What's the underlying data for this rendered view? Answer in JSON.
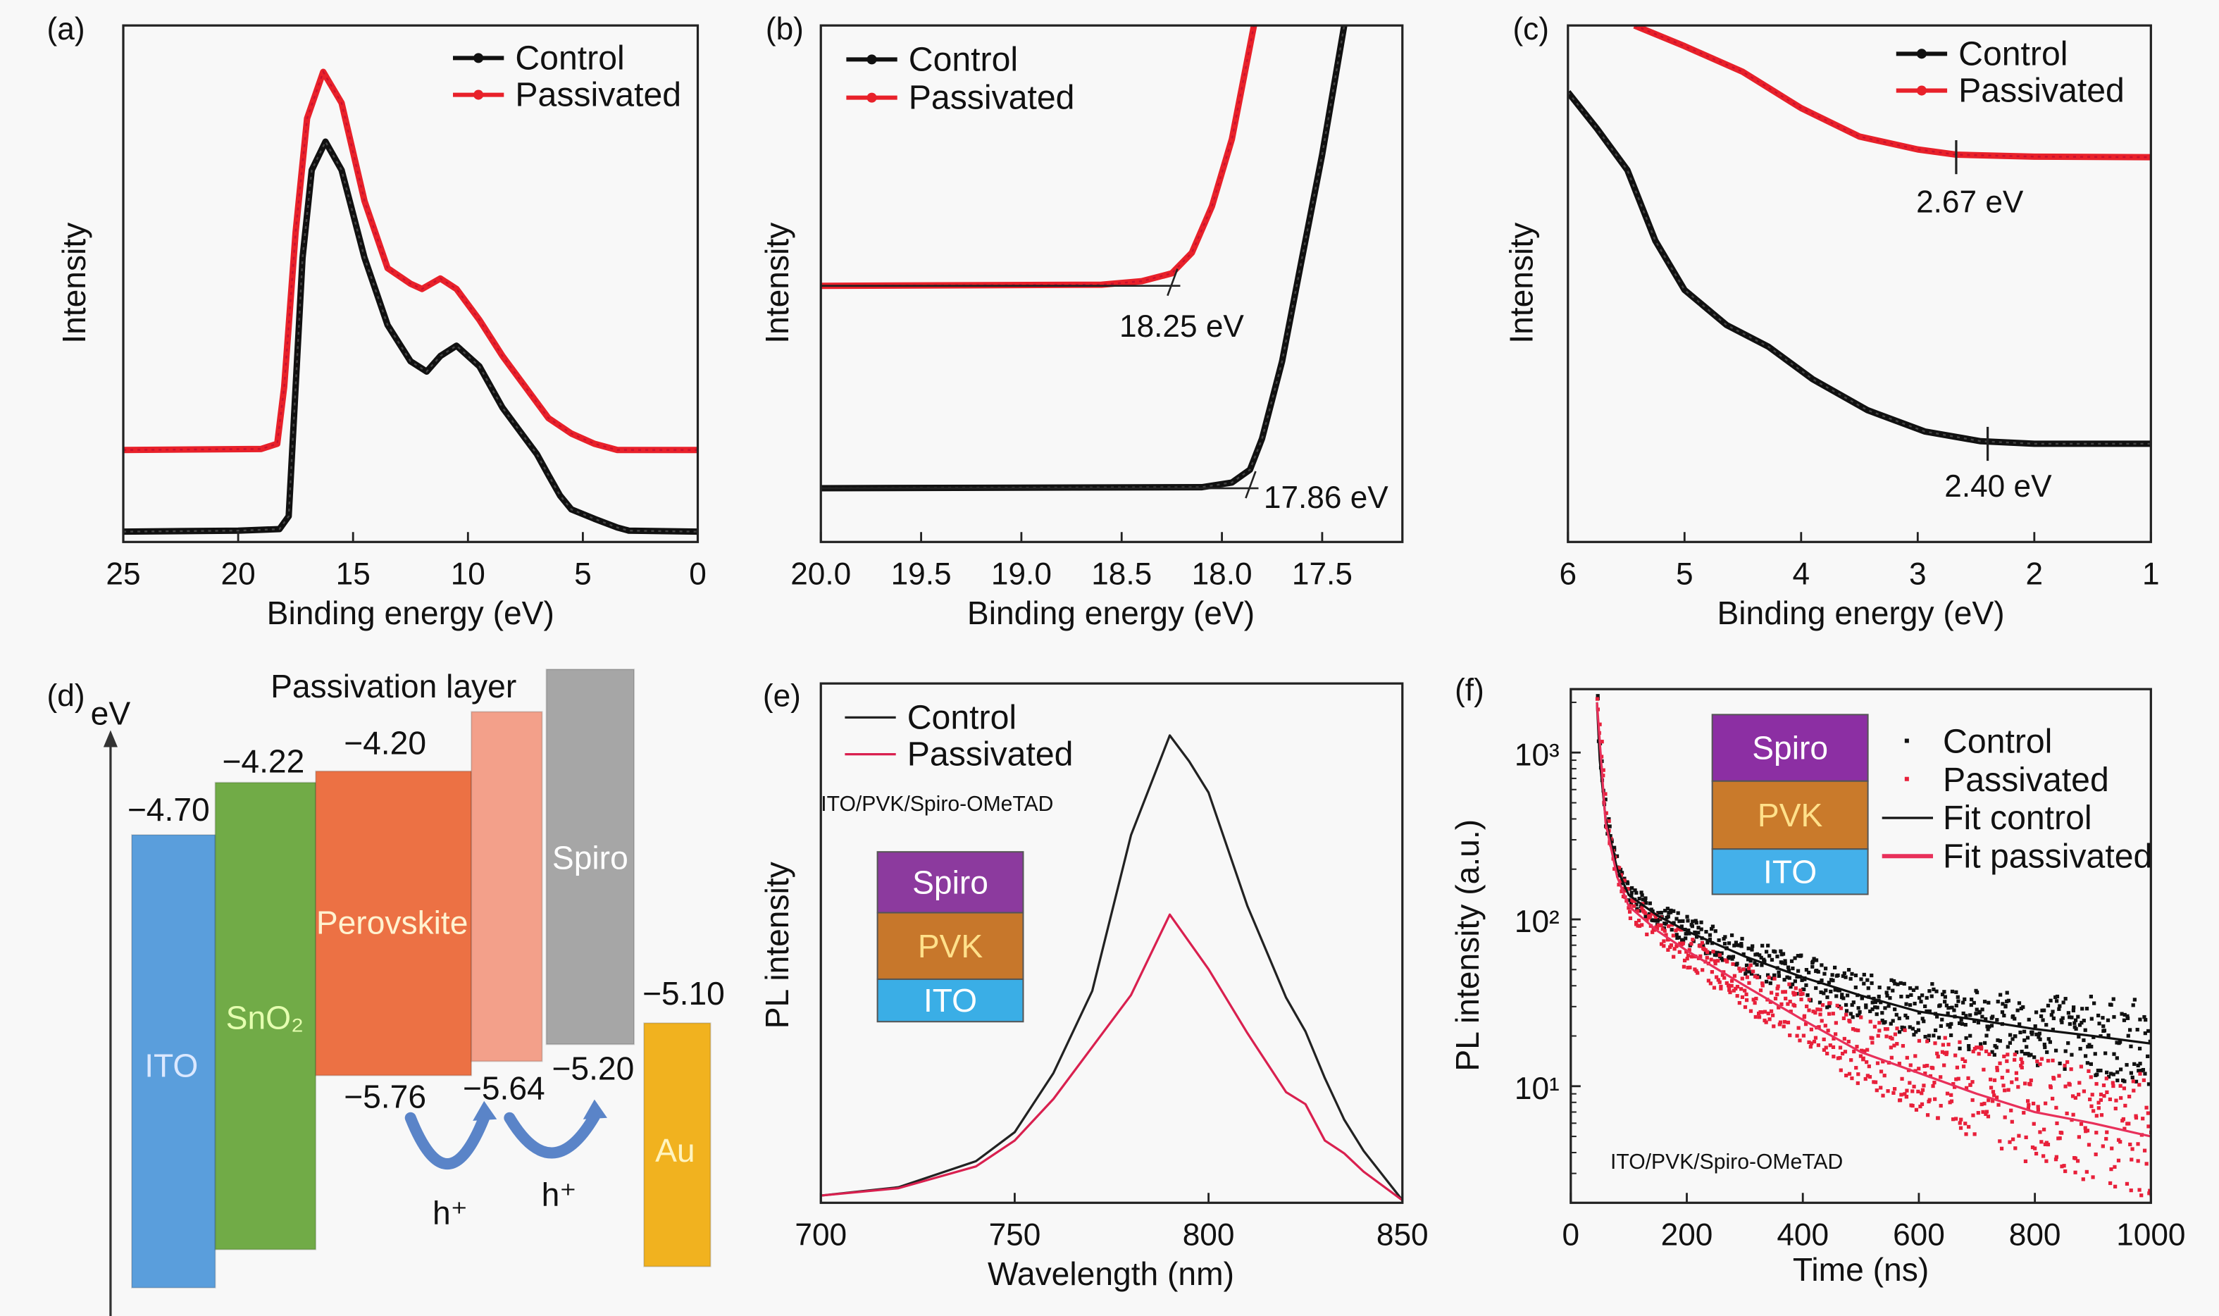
{
  "panel_labels": [
    "(a)",
    "(b)",
    "(c)",
    "(d)",
    "(e)",
    "(f)"
  ],
  "chart_data": [
    {
      "panel": "(a)",
      "type": "line",
      "xlabel": "Binding energy (eV)",
      "ylabel": "Intensity",
      "xlim": [
        25,
        0
      ],
      "ylim": [
        0,
        1
      ],
      "yscale": "linear",
      "xticks": [
        25,
        20,
        15,
        10,
        5,
        0
      ],
      "xtick_labels": [
        "25",
        "20",
        "15",
        "10",
        "5",
        "0"
      ],
      "legend": "top-right",
      "grid": false,
      "series": [
        {
          "name": "Control",
          "color": "#111111",
          "points": [
            [
              25,
              0.02
            ],
            [
              20,
              0.022
            ],
            [
              18.2,
              0.025
            ],
            [
              17.8,
              0.05
            ],
            [
              17.5,
              0.3
            ],
            [
              17.2,
              0.55
            ],
            [
              16.8,
              0.72
            ],
            [
              16.2,
              0.775
            ],
            [
              15.5,
              0.72
            ],
            [
              14.5,
              0.55
            ],
            [
              13.5,
              0.42
            ],
            [
              12.5,
              0.35
            ],
            [
              11.8,
              0.33
            ],
            [
              11.2,
              0.36
            ],
            [
              10.5,
              0.38
            ],
            [
              9.5,
              0.34
            ],
            [
              8.5,
              0.26
            ],
            [
              7.5,
              0.2
            ],
            [
              7,
              0.17
            ],
            [
              6.5,
              0.13
            ],
            [
              6,
              0.09
            ],
            [
              5.5,
              0.063
            ],
            [
              4.5,
              0.045
            ],
            [
              3.5,
              0.028
            ],
            [
              3,
              0.022
            ],
            [
              0,
              0.02
            ]
          ]
        },
        {
          "name": "Passivated",
          "color": "#e8212a",
          "points": [
            [
              25,
              0.178
            ],
            [
              19,
              0.18
            ],
            [
              18.3,
              0.19
            ],
            [
              18,
              0.3
            ],
            [
              17.5,
              0.6
            ],
            [
              17,
              0.82
            ],
            [
              16.3,
              0.91
            ],
            [
              15.5,
              0.85
            ],
            [
              14.5,
              0.66
            ],
            [
              13.5,
              0.53
            ],
            [
              12.5,
              0.5
            ],
            [
              12,
              0.49
            ],
            [
              11.2,
              0.51
            ],
            [
              10.5,
              0.49
            ],
            [
              9.5,
              0.43
            ],
            [
              8.5,
              0.36
            ],
            [
              7.5,
              0.3
            ],
            [
              6.5,
              0.24
            ],
            [
              5.5,
              0.21
            ],
            [
              4.5,
              0.19
            ],
            [
              3.5,
              0.178
            ],
            [
              0,
              0.178
            ]
          ]
        }
      ]
    },
    {
      "panel": "(b)",
      "type": "line",
      "xlabel": "Binding energy (eV)",
      "ylabel": "Intensity",
      "xlim": [
        20,
        17.1
      ],
      "ylim": [
        0,
        1
      ],
      "yscale": "linear",
      "xticks": [
        20,
        19.5,
        19,
        18.5,
        18,
        17.5
      ],
      "xtick_labels": [
        "20.0",
        "19.5",
        "19.0",
        "18.5",
        "18.0",
        "17.5"
      ],
      "legend": "top-left",
      "grid": false,
      "series": [
        {
          "name": "Control",
          "color": "#111111",
          "points": [
            [
              20,
              0.104
            ],
            [
              18.1,
              0.106
            ],
            [
              17.95,
              0.115
            ],
            [
              17.86,
              0.14
            ],
            [
              17.8,
              0.2
            ],
            [
              17.7,
              0.35
            ],
            [
              17.6,
              0.55
            ],
            [
              17.5,
              0.75
            ],
            [
              17.39,
              1.0
            ]
          ]
        },
        {
          "name": "Passivated",
          "color": "#e8212a",
          "points": [
            [
              20,
              0.496
            ],
            [
              18.6,
              0.498
            ],
            [
              18.4,
              0.505
            ],
            [
              18.25,
              0.52
            ],
            [
              18.15,
              0.56
            ],
            [
              18.05,
              0.65
            ],
            [
              17.95,
              0.78
            ],
            [
              17.84,
              1.0
            ]
          ]
        }
      ],
      "annotations": [
        {
          "text": "18.25 eV",
          "x": 18.25,
          "y": 0.496,
          "series": "Passivated"
        },
        {
          "text": "17.86 eV",
          "x": 17.86,
          "y": 0.104,
          "series": "Control"
        }
      ]
    },
    {
      "panel": "(c)",
      "type": "line",
      "xlabel": "Binding energy (eV)",
      "ylabel": "Intensity",
      "xlim": [
        6,
        1
      ],
      "ylim": [
        0,
        1
      ],
      "yscale": "linear",
      "xticks": [
        6,
        5,
        4,
        3,
        2,
        1
      ],
      "xtick_labels": [
        "6",
        "5",
        "4",
        "3",
        "2",
        "1"
      ],
      "legend": "top-right",
      "grid": false,
      "series": [
        {
          "name": "Control",
          "color": "#111111",
          "points": [
            [
              6,
              0.871
            ],
            [
              5.75,
              0.8
            ],
            [
              5.49,
              0.72
            ],
            [
              5.25,
              0.583
            ],
            [
              5.0,
              0.488
            ],
            [
              4.64,
              0.42
            ],
            [
              4.28,
              0.378
            ],
            [
              3.9,
              0.315
            ],
            [
              3.43,
              0.255
            ],
            [
              2.94,
              0.214
            ],
            [
              2.46,
              0.195
            ],
            [
              2.0,
              0.19
            ],
            [
              1,
              0.19
            ]
          ]
        },
        {
          "name": "Passivated",
          "color": "#e8212a",
          "points": [
            [
              5.43,
              1.0
            ],
            [
              5.0,
              0.96
            ],
            [
              4.5,
              0.91
            ],
            [
              4.0,
              0.84
            ],
            [
              3.5,
              0.785
            ],
            [
              3.0,
              0.76
            ],
            [
              2.67,
              0.75
            ],
            [
              2.0,
              0.746
            ],
            [
              1,
              0.745
            ]
          ]
        }
      ],
      "annotations": [
        {
          "text": "2.67 eV",
          "x": 2.67,
          "y": 0.745,
          "series": "Passivated"
        },
        {
          "text": "2.40 eV",
          "x": 2.4,
          "y": 0.19,
          "series": "Control"
        }
      ]
    },
    {
      "panel": "(e)",
      "type": "line",
      "xlabel": "Wavelength (nm)",
      "ylabel": "PL intensity",
      "xlim": [
        700,
        850
      ],
      "ylim": [
        0,
        1
      ],
      "yscale": "linear",
      "xticks": [
        700,
        750,
        800,
        850
      ],
      "xtick_labels": [
        "700",
        "750",
        "800",
        "850"
      ],
      "legend": "top-left",
      "grid": false,
      "inset_text": "ITO/PVK/Spiro-OMeTAD",
      "inset_stack": [
        {
          "label": "Spiro",
          "color": "#8c3a9e"
        },
        {
          "label": "PVK",
          "color": "#c7772b"
        },
        {
          "label": "ITO",
          "color": "#3aaee6"
        }
      ],
      "series": [
        {
          "name": "Control",
          "color": "#222222",
          "points": [
            [
              700,
              0.014
            ],
            [
              720,
              0.03
            ],
            [
              740,
              0.08
            ],
            [
              750,
              0.136
            ],
            [
              760,
              0.25
            ],
            [
              770,
              0.408
            ],
            [
              780,
              0.708
            ],
            [
              790,
              0.9
            ],
            [
              795,
              0.85
            ],
            [
              800,
              0.79
            ],
            [
              810,
              0.572
            ],
            [
              820,
              0.395
            ],
            [
              825,
              0.33
            ],
            [
              830,
              0.24
            ],
            [
              835,
              0.16
            ],
            [
              840,
              0.1
            ],
            [
              850,
              0.005
            ]
          ]
        },
        {
          "name": "Passivated",
          "color": "#d9204f",
          "points": [
            [
              700,
              0.014
            ],
            [
              720,
              0.028
            ],
            [
              740,
              0.07
            ],
            [
              750,
              0.12
            ],
            [
              760,
              0.2
            ],
            [
              770,
              0.3
            ],
            [
              780,
              0.4
            ],
            [
              790,
              0.555
            ],
            [
              800,
              0.45
            ],
            [
              810,
              0.327
            ],
            [
              820,
              0.213
            ],
            [
              825,
              0.19
            ],
            [
              830,
              0.12
            ],
            [
              835,
              0.095
            ],
            [
              840,
              0.06
            ],
            [
              850,
              0.005
            ]
          ]
        }
      ]
    },
    {
      "panel": "(f)",
      "type": "scatter",
      "xlabel": "Time (ns)",
      "ylabel": "PL intensity (a.u.)",
      "xlim": [
        0,
        1000
      ],
      "ylim": [
        2,
        2400
      ],
      "yscale": "log",
      "xticks": [
        0,
        200,
        400,
        600,
        800,
        1000
      ],
      "xtick_labels": [
        "0",
        "200",
        "400",
        "600",
        "800",
        "1000"
      ],
      "yticks": [
        10,
        100,
        1000
      ],
      "ytick_labels": [
        "10¹",
        "10²",
        "10³"
      ],
      "legend": "top-right",
      "grid": false,
      "inset_text": "ITO/PVK/Spiro-OMeTAD",
      "inset_stack": [
        {
          "label": "Spiro",
          "color": "#8c2fa3"
        },
        {
          "label": "PVK",
          "color": "#c97a2b"
        },
        {
          "label": "ITO",
          "color": "#44b0ea"
        }
      ],
      "series": [
        {
          "name": "Control",
          "kind": "scatter",
          "color": "#111111",
          "points": [
            [
              45,
              2000
            ],
            [
              50,
              900
            ],
            [
              60,
              400
            ],
            [
              80,
              200
            ],
            [
              100,
              140
            ],
            [
              150,
              105
            ],
            [
              200,
              85
            ],
            [
              300,
              60
            ],
            [
              400,
              45
            ],
            [
              500,
              35
            ],
            [
              600,
              28
            ],
            [
              700,
              25
            ],
            [
              800,
              22
            ],
            [
              900,
              20
            ],
            [
              1000,
              18
            ]
          ]
        },
        {
          "name": "Passivated",
          "kind": "scatter",
          "color": "#e8203a",
          "points": [
            [
              45,
              2000
            ],
            [
              60,
              380
            ],
            [
              80,
              180
            ],
            [
              100,
              120
            ],
            [
              150,
              85
            ],
            [
              200,
              65
            ],
            [
              300,
              40
            ],
            [
              400,
              25
            ],
            [
              500,
              16
            ],
            [
              600,
              12
            ],
            [
              700,
              9
            ],
            [
              800,
              7
            ],
            [
              900,
              6
            ],
            [
              1000,
              5
            ]
          ]
        },
        {
          "name": "Fit control",
          "kind": "line",
          "color": "#111111",
          "points": [
            [
              45,
              2000
            ],
            [
              50,
              900
            ],
            [
              60,
              400
            ],
            [
              80,
              200
            ],
            [
              100,
              140
            ],
            [
              150,
              105
            ],
            [
              200,
              85
            ],
            [
              300,
              60
            ],
            [
              400,
              45
            ],
            [
              500,
              35
            ],
            [
              600,
              28
            ],
            [
              700,
              25
            ],
            [
              800,
              22
            ],
            [
              900,
              20
            ],
            [
              1000,
              18
            ]
          ]
        },
        {
          "name": "Fit passivated",
          "kind": "line",
          "color": "#e8305a",
          "points": [
            [
              45,
              2000
            ],
            [
              60,
              380
            ],
            [
              80,
              180
            ],
            [
              100,
              120
            ],
            [
              150,
              85
            ],
            [
              200,
              65
            ],
            [
              300,
              40
            ],
            [
              400,
              25
            ],
            [
              500,
              16
            ],
            [
              600,
              12
            ],
            [
              700,
              9
            ],
            [
              800,
              7
            ],
            [
              900,
              6
            ],
            [
              1000,
              5
            ]
          ]
        }
      ]
    }
  ],
  "band_diagram": {
    "panel": "(d)",
    "axis_unit": "eV",
    "passivation_title": "Passivation layer",
    "layers": [
      {
        "name": "ITO",
        "color": "#5a9edc",
        "top_label": "−4.70",
        "bottom_label": ""
      },
      {
        "name": "SnO₂",
        "color": "#71ab47",
        "top_label": "−4.22",
        "bottom_label": ""
      },
      {
        "name": "Perovskite",
        "color": "#ec7144",
        "top_label": "−4.20",
        "bottom_label": "−5.76"
      },
      {
        "name": "",
        "color": "#f3a08a",
        "top_label": "",
        "bottom_label": "−5.64"
      },
      {
        "name": "Spiro",
        "color": "#a6a6a6",
        "top_label": "",
        "bottom_label": "−5.20"
      },
      {
        "name": "Au",
        "color": "#f1b21f",
        "top_label": "−5.10",
        "bottom_label": ""
      }
    ],
    "carrier_labels": [
      "h⁺",
      "h⁺"
    ],
    "arrow_color": "#5a84c8"
  }
}
